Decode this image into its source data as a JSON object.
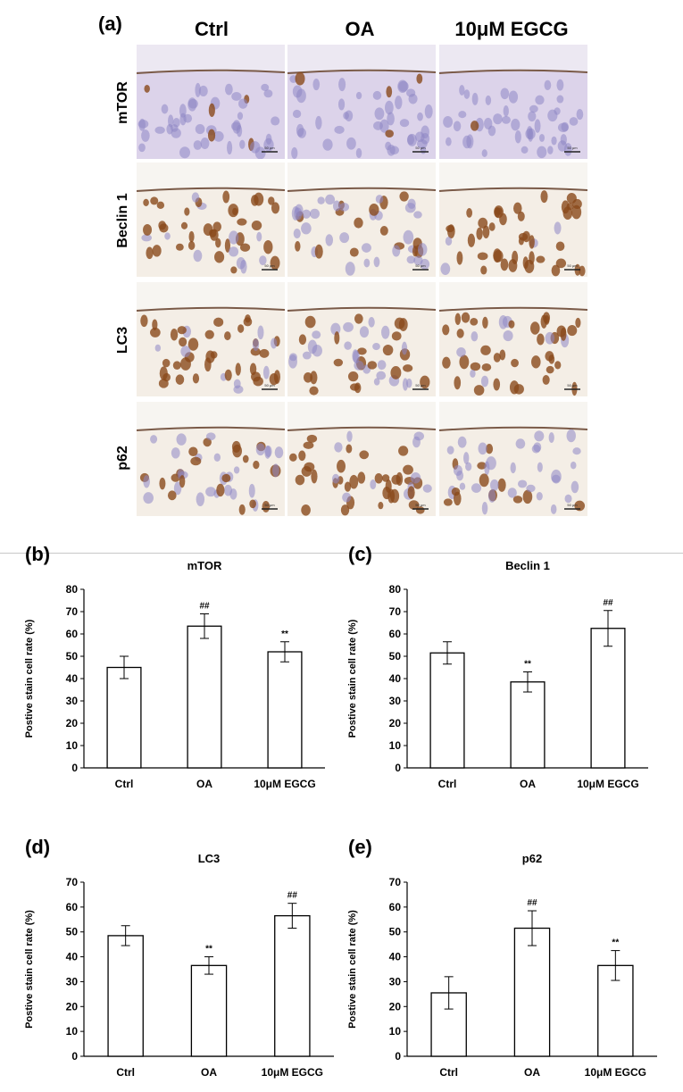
{
  "figure_a": {
    "panel_label": "(a)",
    "columns": [
      "Ctrl",
      "OA",
      "10μM EGCG"
    ],
    "rows": [
      "mTOR",
      "Beclin 1",
      "LC3",
      "p62"
    ],
    "scale_bar": "50 μm",
    "colors": {
      "background_purple": "#dcd3ea",
      "stain_brown": "#8a4a1c",
      "nucleus_blue": "#8e86c4",
      "tissue_light": "#f4eee6"
    }
  },
  "chart_data": [
    {
      "type": "bar",
      "panel_label": "(b)",
      "title": "mTOR",
      "categories": [
        "Ctrl",
        "OA",
        "10μM EGCG"
      ],
      "values": [
        45,
        63.5,
        52
      ],
      "errors": [
        5,
        5.5,
        4.5
      ],
      "annotations": [
        "",
        "##",
        "**"
      ],
      "xlabel": "",
      "ylabel": "Postive stain cell rate (%)",
      "ylim": [
        0,
        80
      ],
      "yticks": [
        0,
        10,
        20,
        30,
        40,
        50,
        60,
        70,
        80
      ]
    },
    {
      "type": "bar",
      "panel_label": "(c)",
      "title": "Beclin 1",
      "categories": [
        "Ctrl",
        "OA",
        "10μM EGCG"
      ],
      "values": [
        51.5,
        38.5,
        62.5
      ],
      "errors": [
        5,
        4.5,
        8
      ],
      "annotations": [
        "",
        "**",
        "##"
      ],
      "xlabel": "",
      "ylabel": "Postive stain cell rate (%)",
      "ylim": [
        0,
        80
      ],
      "yticks": [
        0,
        10,
        20,
        30,
        40,
        50,
        60,
        70,
        80
      ]
    },
    {
      "type": "bar",
      "panel_label": "(d)",
      "title": "LC3",
      "categories": [
        "Ctrl",
        "OA",
        "10μM EGCG"
      ],
      "values": [
        48.5,
        36.5,
        56.5
      ],
      "errors": [
        4,
        3.5,
        5
      ],
      "annotations": [
        "",
        "**",
        "##"
      ],
      "xlabel": "",
      "ylabel": "Postive stain cell rate (%)",
      "ylim": [
        0,
        70
      ],
      "yticks": [
        0,
        10,
        20,
        30,
        40,
        50,
        60,
        70
      ]
    },
    {
      "type": "bar",
      "panel_label": "(e)",
      "title": "p62",
      "categories": [
        "Ctrl",
        "OA",
        "10μM EGCG"
      ],
      "values": [
        25.5,
        51.5,
        36.5
      ],
      "errors": [
        6.5,
        7,
        6
      ],
      "annotations": [
        "",
        "##",
        "**"
      ],
      "xlabel": "",
      "ylabel": "Postive stain cell rate (%)",
      "ylim": [
        0,
        70
      ],
      "yticks": [
        0,
        10,
        20,
        30,
        40,
        50,
        60,
        70
      ]
    }
  ]
}
